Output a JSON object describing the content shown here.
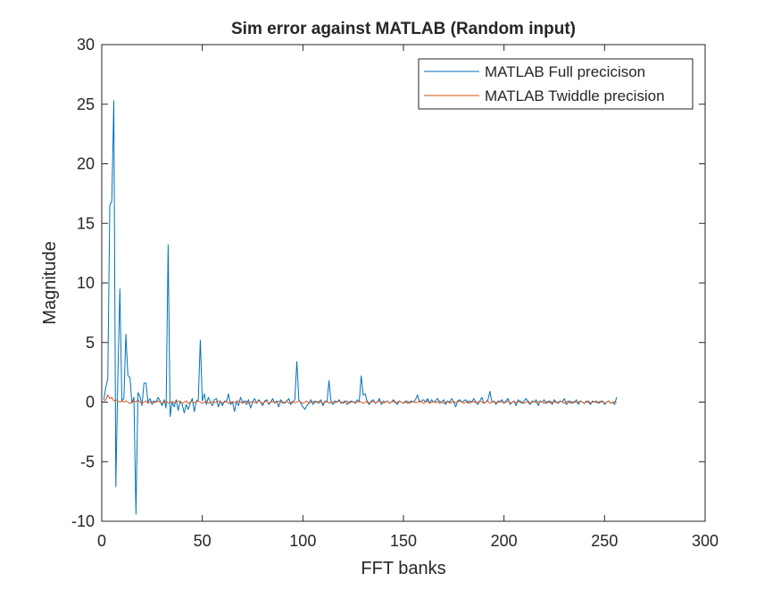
{
  "chart_data": {
    "type": "line",
    "title": "Sim error against MATLAB (Random input)",
    "x_label": "FFT banks",
    "y_label": "Magnitude",
    "xlim": [
      0,
      300
    ],
    "xticks": [
      0,
      50,
      100,
      150,
      200,
      250,
      300
    ],
    "ylim": [
      -10,
      30
    ],
    "yticks": [
      -10,
      -5,
      0,
      5,
      10,
      15,
      20,
      25,
      30
    ],
    "legend": "northeast",
    "grid": false,
    "x": [
      1,
      2,
      3,
      4,
      5,
      6,
      7,
      8,
      9,
      10,
      11,
      12,
      13,
      14,
      15,
      16,
      17,
      18,
      19,
      20,
      21,
      22,
      23,
      24,
      25,
      26,
      27,
      28,
      29,
      30,
      31,
      32,
      33,
      34,
      35,
      36,
      37,
      38,
      39,
      40,
      41,
      42,
      43,
      44,
      45,
      46,
      47,
      48,
      49,
      50,
      51,
      52,
      53,
      54,
      55,
      56,
      57,
      58,
      59,
      60,
      61,
      62,
      63,
      64,
      65,
      66,
      67,
      68,
      69,
      70,
      71,
      72,
      73,
      74,
      75,
      76,
      77,
      78,
      79,
      80,
      81,
      82,
      83,
      84,
      85,
      86,
      87,
      88,
      89,
      90,
      91,
      92,
      93,
      94,
      95,
      96,
      97,
      98,
      99,
      100,
      101,
      102,
      103,
      104,
      105,
      106,
      107,
      108,
      109,
      110,
      111,
      112,
      113,
      114,
      115,
      116,
      117,
      118,
      119,
      120,
      121,
      122,
      123,
      124,
      125,
      126,
      127,
      128,
      129,
      130,
      131,
      132,
      133,
      134,
      135,
      136,
      137,
      138,
      139,
      140,
      141,
      142,
      143,
      144,
      145,
      146,
      147,
      148,
      149,
      150,
      151,
      152,
      153,
      154,
      155,
      156,
      157,
      158,
      159,
      160,
      161,
      162,
      163,
      164,
      165,
      166,
      167,
      168,
      169,
      170,
      171,
      172,
      173,
      174,
      175,
      176,
      177,
      178,
      179,
      180,
      181,
      182,
      183,
      184,
      185,
      186,
      187,
      188,
      189,
      190,
      191,
      192,
      193,
      194,
      195,
      196,
      197,
      198,
      199,
      200,
      201,
      202,
      203,
      204,
      205,
      206,
      207,
      208,
      209,
      210,
      211,
      212,
      213,
      214,
      215,
      216,
      217,
      218,
      219,
      220,
      221,
      222,
      223,
      224,
      225,
      226,
      227,
      228,
      229,
      230,
      231,
      232,
      233,
      234,
      235,
      236,
      237,
      238,
      239,
      240,
      241,
      242,
      243,
      244,
      245,
      246,
      247,
      248,
      249,
      250,
      251,
      252,
      253,
      254,
      255,
      256
    ],
    "series": [
      {
        "name": "MATLAB Full precicison",
        "color": "#0072BD",
        "values": [
          0.2,
          1.2,
          2.0,
          16.5,
          16.9,
          25.3,
          -7.1,
          2.0,
          9.5,
          0.1,
          0.3,
          5.7,
          2.2,
          2.1,
          -0.1,
          0.4,
          -9.4,
          0.8,
          0.5,
          -0.3,
          1.6,
          1.6,
          0.0,
          0.3,
          -0.2,
          0.1,
          0.0,
          0.4,
          0.1,
          -0.3,
          0.2,
          -0.5,
          13.2,
          -1.2,
          0.0,
          -0.4,
          0.2,
          -0.7,
          0.1,
          -0.2,
          -0.9,
          -0.2,
          -0.6,
          -0.1,
          0.3,
          -0.8,
          0.1,
          0.2,
          5.2,
          0.1,
          0.7,
          -0.2,
          0.4,
          0.0,
          -0.3,
          0.2,
          0.3,
          -0.4,
          0.1,
          -0.3,
          0.1,
          0.0,
          0.7,
          -0.2,
          0.0,
          -0.8,
          0.1,
          -0.3,
          0.4,
          0.0,
          0.1,
          -0.2,
          0.2,
          -0.5,
          0.0,
          0.3,
          -0.1,
          0.2,
          0.0,
          -0.3,
          0.1,
          0.2,
          -0.2,
          0.0,
          0.3,
          -0.1,
          0.1,
          -0.4,
          0.2,
          0.0,
          -0.1,
          0.1,
          0.3,
          -0.2,
          0.0,
          0.2,
          3.4,
          0.2,
          -0.1,
          -0.4,
          -0.6,
          -0.3,
          -0.1,
          0.2,
          -0.2,
          0.1,
          0.0,
          -0.1,
          0.2,
          -0.3,
          0.1,
          0.0,
          1.8,
          0.0,
          -0.2,
          0.1,
          0.0,
          0.2,
          -0.1,
          0.0,
          0.1,
          -0.2,
          0.0,
          0.1,
          0.0,
          -0.1,
          0.2,
          0.0,
          2.2,
          0.6,
          0.7,
          0.0,
          -0.2,
          0.1,
          0.2,
          -0.1,
          0.0,
          0.3,
          -0.2,
          0.1,
          0.0,
          0.1,
          -0.1,
          0.0,
          0.2,
          0.0,
          -0.2,
          0.1,
          0.0,
          -0.1,
          0.1,
          -0.1,
          0.0,
          0.1,
          0.0,
          0.2,
          0.6,
          0.0,
          0.1,
          0.2,
          0.0,
          0.3,
          -0.1,
          0.2,
          0.0,
          0.1,
          0.3,
          -0.1,
          0.0,
          0.2,
          -0.2,
          0.1,
          0.0,
          0.3,
          0.0,
          -0.4,
          0.1,
          0.2,
          0.0,
          0.1,
          0.2,
          -0.1,
          0.1,
          0.0,
          0.3,
          0.0,
          -0.2,
          0.1,
          0.4,
          -0.1,
          0.0,
          0.2,
          0.9,
          0.0,
          0.1,
          -0.2,
          0.1,
          0.0,
          0.2,
          -0.1,
          0.1,
          0.3,
          -0.2,
          0.0,
          0.1,
          -0.3,
          0.2,
          0.0,
          -0.1,
          0.1,
          0.3,
          0.0,
          -0.2,
          0.1,
          0.0,
          0.2,
          -0.3,
          0.1,
          0.0,
          0.2,
          -0.1,
          0.0,
          0.1,
          -0.2,
          0.2,
          0.0,
          -0.1,
          0.1,
          0.0,
          0.3,
          -0.2,
          0.0,
          0.1,
          -0.1,
          0.0,
          0.2,
          -0.2,
          0.1,
          0.0,
          -0.1,
          0.1,
          0.0,
          -0.2,
          0.1,
          0.0,
          0.1,
          -0.1,
          0.0,
          0.1,
          -0.2,
          0.0,
          0.1,
          -0.1,
          0.0,
          -0.2,
          0.4
        ]
      },
      {
        "name": "MATLAB Twiddle precision",
        "color": "#D95319",
        "values": [
          0.1,
          0.2,
          0.6,
          0.3,
          0.4,
          0.1,
          0.2,
          0.1,
          0.0,
          0.1,
          0.0,
          0.1,
          0.0,
          -0.1,
          0.0,
          0.1,
          0.0,
          0.2,
          0.0,
          -0.1,
          0.0,
          0.1,
          -0.1,
          0.0,
          0.05,
          -0.05,
          0.0,
          0.1,
          0.0,
          -0.1,
          0.0,
          0.1,
          -0.1,
          0.0,
          0.05,
          -0.05,
          0.0,
          0.1,
          0.0,
          -0.1,
          0.0,
          0.1,
          -0.1,
          0.0,
          0.05,
          -0.05,
          0.0,
          0.1,
          0.0,
          -0.1,
          0.0,
          0.1,
          -0.1,
          0.0,
          0.05,
          -0.05,
          0.0,
          0.1,
          0.0,
          -0.1,
          0.0,
          0.1,
          -0.1,
          0.0,
          0.05,
          -0.05,
          0.0,
          0.1,
          0.0,
          -0.1,
          0.0,
          0.1,
          -0.1,
          0.0,
          0.05,
          -0.05,
          0.0,
          0.1,
          0.0,
          -0.1,
          0.0,
          0.1,
          -0.1,
          0.0,
          0.05,
          -0.05,
          0.0,
          0.1,
          0.0,
          -0.1,
          0.0,
          0.1,
          -0.1,
          0.0,
          0.05,
          -0.05,
          0.0,
          0.1,
          0.0,
          -0.1,
          0.0,
          0.1,
          -0.1,
          0.0,
          0.05,
          -0.05,
          0.0,
          0.1,
          0.0,
          -0.1,
          0.0,
          0.1,
          -0.1,
          0.0,
          0.05,
          -0.05,
          0.0,
          0.1,
          0.0,
          -0.1,
          0.0,
          0.1,
          -0.1,
          0.0,
          0.05,
          -0.05,
          0.0,
          0.1,
          0.0,
          -0.1,
          0.0,
          0.1,
          -0.1,
          0.0,
          0.05,
          -0.05,
          0.0,
          0.1,
          0.0,
          -0.1,
          0.0,
          0.1,
          -0.1,
          0.0,
          0.05,
          -0.05,
          0.0,
          0.1,
          0.0,
          -0.1,
          0.0,
          0.1,
          -0.1,
          0.0,
          0.05,
          -0.05,
          0.0,
          0.1,
          0.0,
          -0.1,
          0.0,
          0.1,
          -0.1,
          0.0,
          0.05,
          -0.05,
          0.0,
          0.1,
          0.0,
          -0.1,
          0.0,
          0.1,
          -0.1,
          0.0,
          0.05,
          -0.05,
          0.0,
          0.1,
          0.0,
          -0.1,
          0.0,
          0.1,
          -0.1,
          0.0,
          0.05,
          -0.05,
          0.0,
          0.1,
          0.0,
          -0.1,
          0.0,
          0.1,
          -0.1,
          0.0,
          0.05,
          -0.05,
          0.0,
          0.1,
          0.0,
          -0.1,
          0.0,
          0.1,
          -0.1,
          0.0,
          0.05,
          -0.05,
          0.0,
          0.1,
          0.0,
          -0.1,
          0.0,
          0.1,
          -0.1,
          0.0,
          0.05,
          -0.05,
          0.0,
          0.1,
          0.0,
          -0.1,
          0.0,
          0.1,
          -0.1,
          0.0,
          0.05,
          -0.05,
          0.0,
          0.1,
          0.0,
          -0.1,
          0.0,
          0.1,
          -0.1,
          0.0,
          0.05,
          -0.05,
          0.0,
          0.1,
          0.0,
          -0.1,
          0.0,
          0.1,
          -0.1,
          0.0,
          0.05,
          -0.05,
          0.0,
          0.1,
          0.0,
          -0.1,
          0.0,
          0.1,
          -0.1,
          0.0,
          0.05,
          -0.05
        ]
      }
    ]
  }
}
